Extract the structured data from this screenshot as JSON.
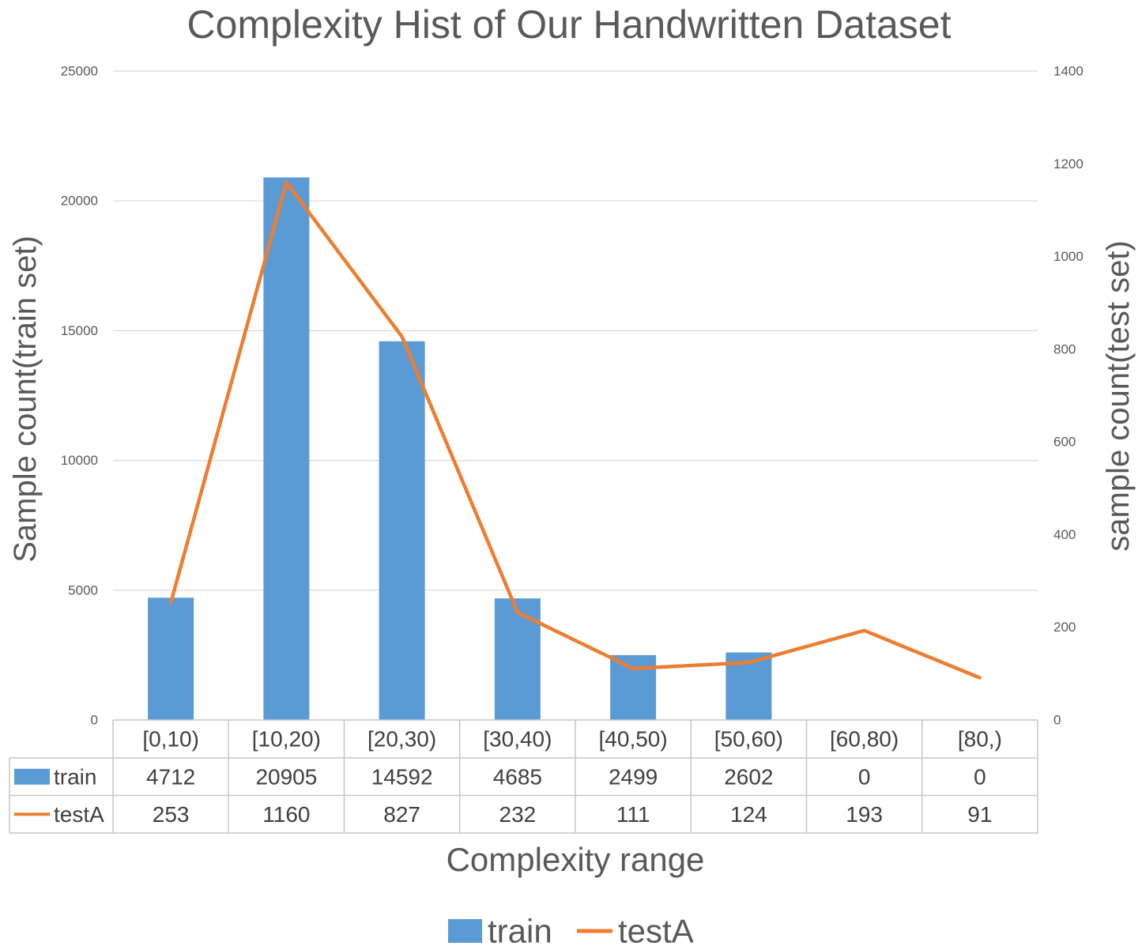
{
  "chart_data": {
    "type": "bar",
    "title": "Complexity Hist of Our Handwritten Dataset",
    "xlabel": "Complexity range",
    "ylabel": "Sample count(train set)",
    "y2label": "sample count(test set)",
    "categories": [
      "[0,10)",
      "[10,20)",
      "[20,30)",
      "[30,40)",
      "[40,50)",
      "[50,60)",
      "[60,80)",
      "[80,)"
    ],
    "ylim": [
      0,
      25000
    ],
    "yticks": [
      0,
      5000,
      10000,
      15000,
      20000,
      25000
    ],
    "y2lim": [
      0,
      1400
    ],
    "y2ticks": [
      0,
      200,
      400,
      600,
      800,
      1000,
      1200,
      1400
    ],
    "series": [
      {
        "name": "train",
        "type": "bar",
        "axis": "primary",
        "color": "#5b9bd5",
        "values": [
          4712,
          20905,
          14592,
          4685,
          2499,
          2602,
          0,
          0
        ]
      },
      {
        "name": "testA",
        "type": "line",
        "axis": "secondary",
        "color": "#ed7d31",
        "values": [
          253,
          1160,
          827,
          232,
          111,
          124,
          193,
          91
        ]
      }
    ],
    "grid": true,
    "legend": "bottom",
    "data_table": true
  }
}
